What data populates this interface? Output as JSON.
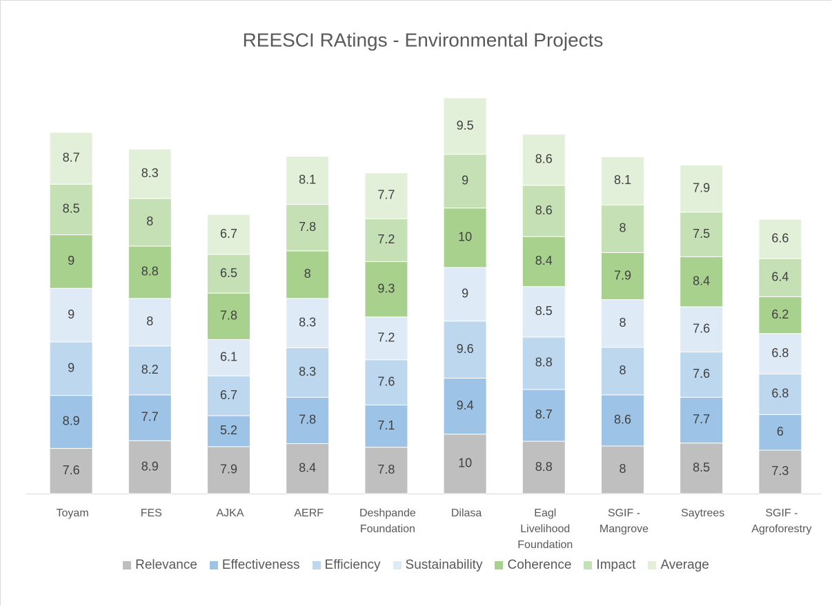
{
  "chart_data": {
    "type": "stacked_bar",
    "title": "REESCI RAtings - Environmental Projects",
    "categories": [
      "Toyam",
      "FES",
      "AJKA",
      "AERF",
      "Deshpande Foundation",
      "Dilasa",
      "Eagl Livelihood Foundation",
      "SGIF - Mangrove",
      "Saytrees",
      "SGIF - Agroforestry"
    ],
    "series": [
      {
        "name": "Relevance",
        "color": "#bfbfbf",
        "values": [
          7.6,
          8.9,
          7.9,
          8.4,
          7.8,
          10,
          8.8,
          8,
          8.5,
          7.3
        ]
      },
      {
        "name": "Effectiveness",
        "color": "#9dc3e6",
        "values": [
          8.9,
          7.7,
          5.2,
          7.8,
          7.1,
          9.4,
          8.7,
          8.6,
          7.7,
          6
        ]
      },
      {
        "name": "Efficiency",
        "color": "#bdd7ee",
        "values": [
          9,
          8.2,
          6.7,
          8.3,
          7.6,
          9.6,
          8.8,
          8,
          7.6,
          6.8
        ]
      },
      {
        "name": "Sustainability",
        "color": "#deebf7",
        "values": [
          9,
          8,
          6.1,
          8.3,
          7.2,
          9,
          8.5,
          8,
          7.6,
          6.8
        ]
      },
      {
        "name": "Coherence",
        "color": "#a9d18e",
        "values": [
          9,
          8.8,
          7.8,
          8,
          9.3,
          10,
          8.4,
          7.9,
          8.4,
          6.2
        ]
      },
      {
        "name": "Impact",
        "color": "#c5e0b4",
        "values": [
          8.5,
          8,
          6.5,
          7.8,
          7.2,
          9,
          8.6,
          8,
          7.5,
          6.4
        ]
      },
      {
        "name": "Average",
        "color": "#e2f0d9",
        "values": [
          8.7,
          8.3,
          6.7,
          8.1,
          7.7,
          9.5,
          8.6,
          8.1,
          7.9,
          6.6
        ]
      }
    ],
    "legend": "bottom"
  }
}
